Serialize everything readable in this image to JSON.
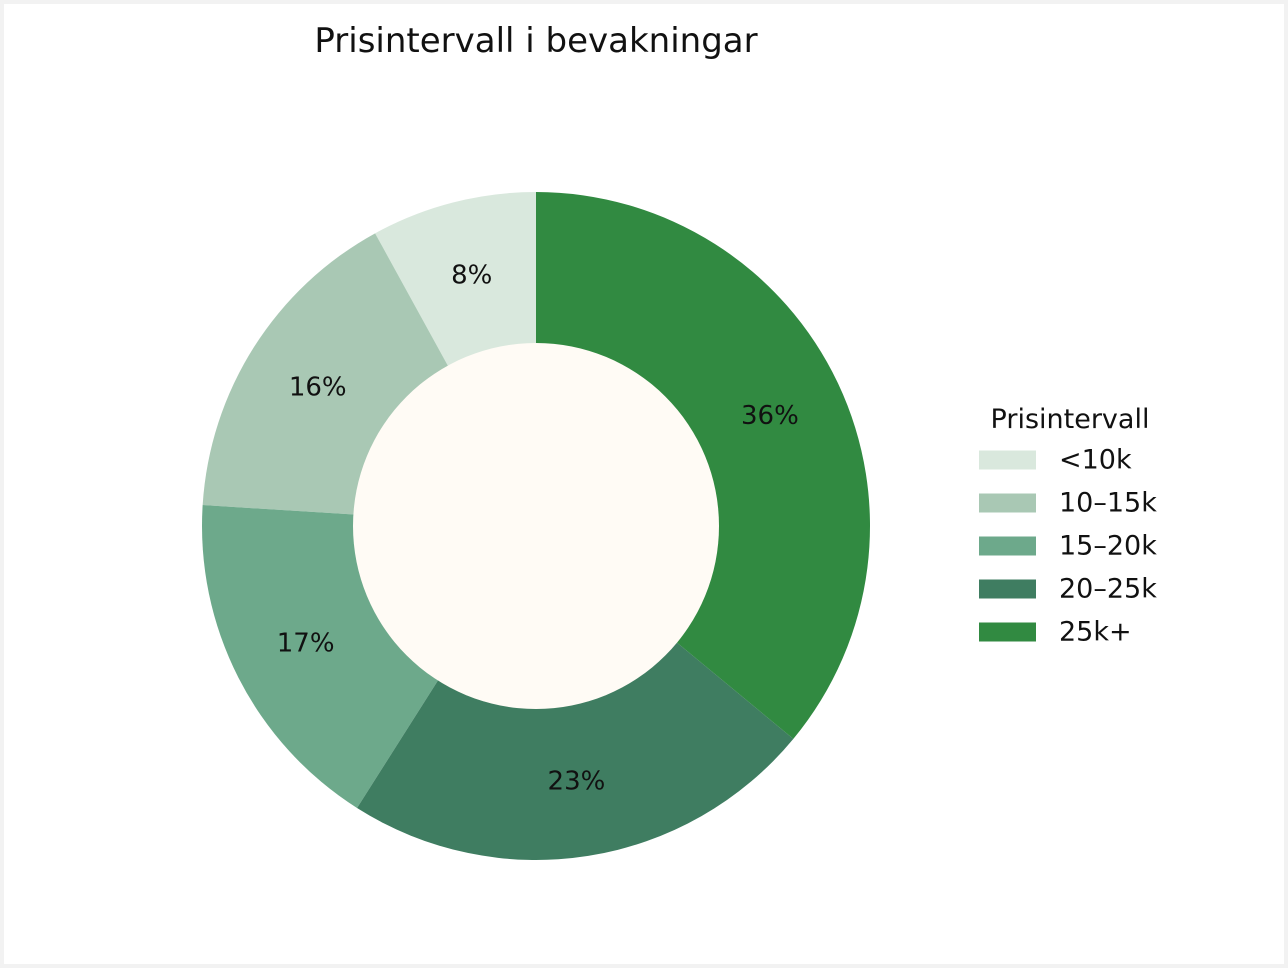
{
  "chart_data": {
    "type": "pie",
    "variant": "donut",
    "title": "Prisintervall i bevakningar",
    "categories": [
      "<10k",
      "10–15k",
      "15–20k",
      "20–25k",
      "25k+"
    ],
    "values": [
      8,
      16,
      17,
      23,
      36
    ],
    "value_labels": [
      "8%",
      "16%",
      "17%",
      "23%",
      "36%"
    ],
    "colors": [
      "#d9e8dd",
      "#a9c8b4",
      "#6da98b",
      "#3f7d61",
      "#318a41"
    ],
    "center_color": "#fffbf5",
    "legend": {
      "title": "Prisintervall",
      "placement": "right"
    }
  }
}
